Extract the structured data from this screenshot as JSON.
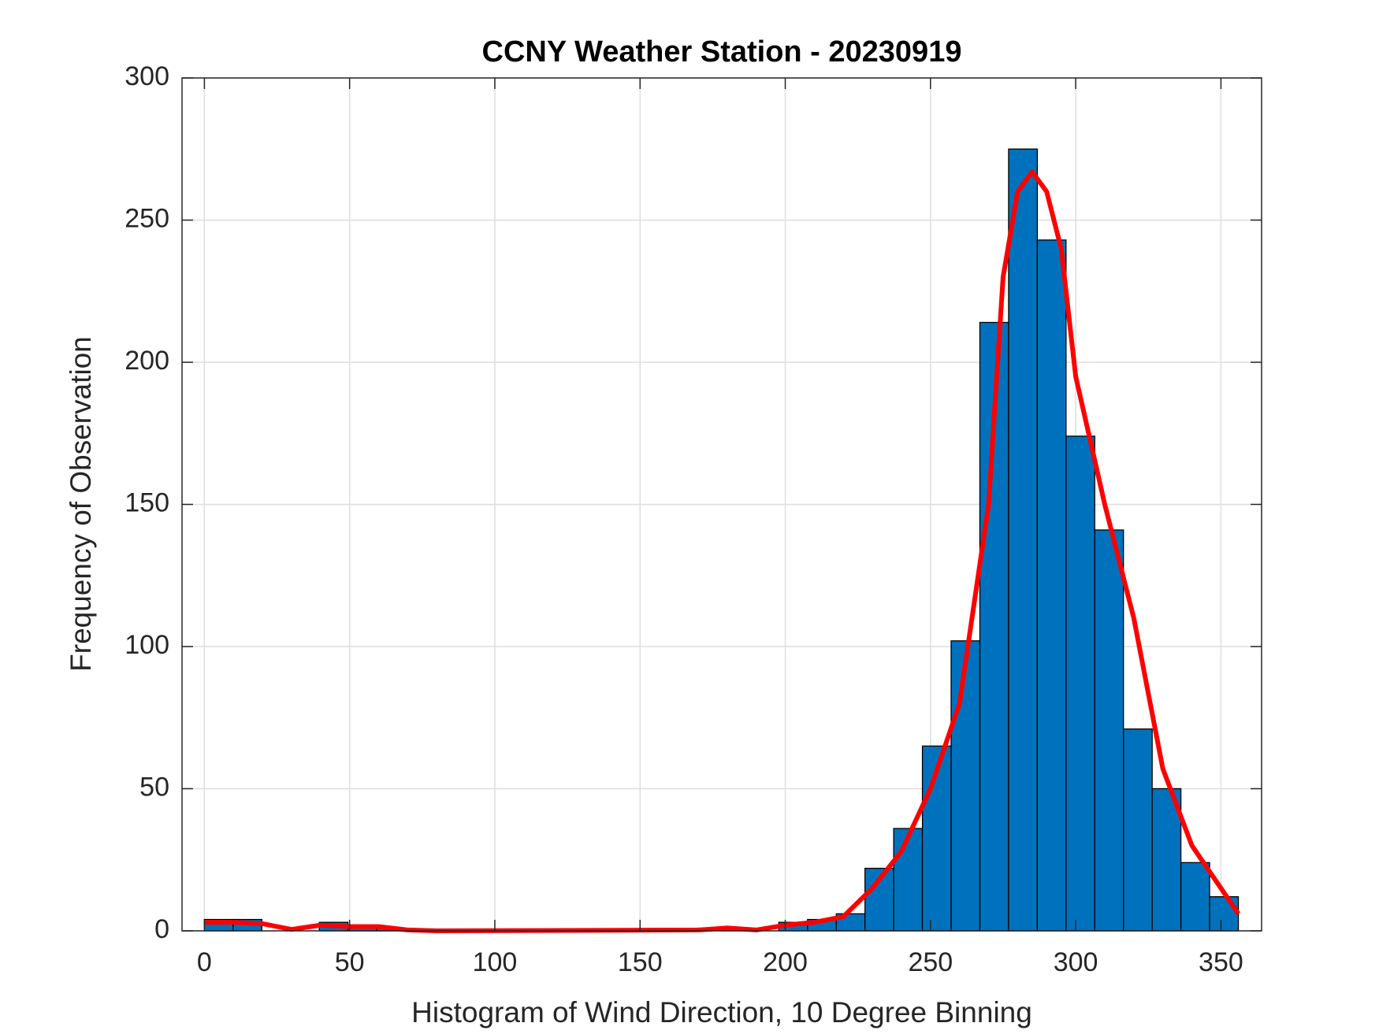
{
  "chart_data": {
    "type": "histogram",
    "title": "CCNY Weather Station - 20230919",
    "xlabel": "Histogram of Wind Direction, 10 Degree Binning",
    "ylabel": "Frequency of Observation",
    "bins": [
      0,
      9.89,
      19.78,
      29.67,
      39.56,
      49.44,
      59.33,
      69.22,
      79.11,
      89,
      98.89,
      108.78,
      118.67,
      128.56,
      138.44,
      148.33,
      158.22,
      168.11,
      178,
      187.89,
      197.78,
      207.67,
      217.56,
      227.44,
      237.33,
      247.22,
      257.11,
      267,
      276.89,
      286.78,
      296.67,
      306.56,
      316.44,
      326.33,
      336.22,
      346.11,
      356
    ],
    "values": [
      4,
      4,
      0,
      0,
      3,
      1,
      1,
      0,
      0,
      0,
      0,
      0,
      0,
      0,
      0,
      0,
      0,
      0,
      1,
      0,
      3,
      4,
      6,
      22,
      36,
      65,
      102,
      214,
      275,
      243,
      174,
      141,
      71,
      50,
      24,
      12
    ],
    "color": "#0072bd",
    "curve": {
      "color": "#ff0000",
      "x": [
        0,
        10,
        20,
        30,
        40,
        50,
        60,
        70,
        80,
        170,
        180,
        190,
        200,
        210,
        220,
        230,
        240,
        250,
        260,
        270,
        275,
        280,
        285,
        290,
        295,
        300,
        310,
        320,
        330,
        340,
        350,
        356
      ],
      "y": [
        3,
        3,
        2.5,
        0.5,
        2,
        1.5,
        1.5,
        0.3,
        0,
        0.3,
        1,
        0.3,
        2,
        3,
        5,
        15,
        28,
        50,
        80,
        150,
        230,
        260,
        267,
        260,
        240,
        195,
        150,
        110,
        57,
        30,
        15,
        6
      ]
    },
    "xlim": [
      -7.7,
      364
    ],
    "ylim": [
      0,
      300
    ],
    "xticks": [
      0,
      50,
      100,
      150,
      200,
      250,
      300,
      350
    ],
    "yticks": [
      0,
      50,
      100,
      150,
      200,
      250,
      300
    ],
    "grid": true
  }
}
